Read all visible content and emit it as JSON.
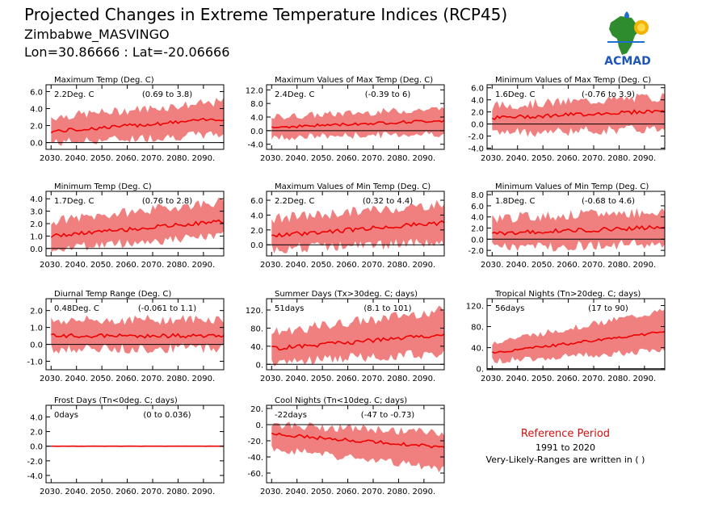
{
  "header": {
    "title": "Projected Changes in Extreme Temperature Indices (RCP45)",
    "location": "Zimbabwe_MASVINGO",
    "coords": "Lon=30.86666 : Lat=-20.06666"
  },
  "logo": {
    "text": "ACMAD",
    "icon": "africa-map-logo-icon"
  },
  "reference": {
    "label": "Reference Period",
    "period": "1991 to 2020",
    "note": "Very-Likely-Ranges are written in ( )"
  },
  "colors": {
    "band": "#f08080",
    "line": "#ee0000",
    "text": "#000000"
  },
  "chart_data": [
    {
      "type": "area",
      "title": "Maximum Temp (Deg. C)",
      "value": "2.2Deg. C",
      "range": "(0.69 to 3.8)",
      "start": 1.3,
      "end": 2.8,
      "lower_start": 0.0,
      "lower_end": 1.0,
      "upper_start": 3.0,
      "upper_end": 4.8,
      "ylim": [
        -0.8,
        6.8
      ],
      "yticks": [
        0,
        2,
        4,
        6
      ],
      "ytick_labels": [
        "0.0",
        "2.0",
        "4.0",
        "6.0"
      ],
      "xlim": [
        2028,
        2098
      ],
      "xticks": [
        2030,
        2040,
        2050,
        2060,
        2070,
        2080,
        2090
      ]
    },
    {
      "type": "area",
      "title": "Maximum Values of Max Temp (Deg. C)",
      "value": "2.4Deg. C",
      "range": "(-0.39 to 6)",
      "start": 1.0,
      "end": 3.0,
      "lower_start": -2.0,
      "lower_end": -0.8,
      "upper_start": 4.0,
      "upper_end": 6.5,
      "ylim": [
        -5.5,
        13.5
      ],
      "yticks": [
        -4,
        0,
        4,
        8,
        12
      ],
      "ytick_labels": [
        "-4.0",
        "0.0",
        "4.0",
        "8.0",
        "12.0"
      ],
      "xlim": [
        2028,
        2098
      ],
      "xticks": [
        2030,
        2040,
        2050,
        2060,
        2070,
        2080,
        2090
      ]
    },
    {
      "type": "area",
      "title": "Minimum Values of Max Temp (Deg. C)",
      "value": "1.6Deg. C",
      "range": "(-0.76 to 3.9)",
      "start": 1.0,
      "end": 2.2,
      "lower_start": -1.5,
      "lower_end": -0.8,
      "upper_start": 3.0,
      "upper_end": 4.5,
      "ylim": [
        -4.2,
        6.5
      ],
      "yticks": [
        -4,
        -2,
        0,
        2,
        4,
        6
      ],
      "ytick_labels": [
        "-4.0",
        "-2.0",
        "0.0",
        "2.0",
        "4.0",
        "6.0"
      ],
      "xlim": [
        2028,
        2098
      ],
      "xticks": [
        2030,
        2040,
        2050,
        2060,
        2070,
        2080,
        2090
      ]
    },
    {
      "type": "area",
      "title": "Minimum Temp (Deg. C)",
      "value": "1.7Deg. C",
      "range": "(0.76 to 2.8)",
      "start": 1.0,
      "end": 2.2,
      "lower_start": 0.0,
      "lower_end": 1.0,
      "upper_start": 2.2,
      "upper_end": 3.8,
      "ylim": [
        -0.6,
        4.6
      ],
      "yticks": [
        0,
        1,
        2,
        3,
        4
      ],
      "ytick_labels": [
        "0.0",
        "1.0",
        "2.0",
        "3.0",
        "4.0"
      ],
      "xlim": [
        2028,
        2098
      ],
      "xticks": [
        2030,
        2040,
        2050,
        2060,
        2070,
        2080,
        2090
      ]
    },
    {
      "type": "area",
      "title": "Maximum Values of Min Temp (Deg. C)",
      "value": "2.2Deg. C",
      "range": "(0.32 to 4.4)",
      "start": 1.2,
      "end": 3.0,
      "lower_start": -0.5,
      "lower_end": 0.3,
      "upper_start": 3.5,
      "upper_end": 5.5,
      "ylim": [
        -1.5,
        7.2
      ],
      "yticks": [
        0,
        2,
        4,
        6
      ],
      "ytick_labels": [
        "0.0",
        "2.0",
        "4.0",
        "6.0"
      ],
      "xlim": [
        2028,
        2098
      ],
      "xticks": [
        2030,
        2040,
        2050,
        2060,
        2070,
        2080,
        2090
      ]
    },
    {
      "type": "area",
      "title": "Minimum Values of Min Temp (Deg. C)",
      "value": "1.8Deg. C",
      "range": "(-0.68 to 4.6)",
      "start": 1.0,
      "end": 2.2,
      "lower_start": -1.5,
      "lower_end": -0.8,
      "upper_start": 3.8,
      "upper_end": 5.0,
      "ylim": [
        -3.0,
        8.6
      ],
      "yticks": [
        -2,
        0,
        2,
        4,
        6,
        8
      ],
      "ytick_labels": [
        "-2.0",
        "0.0",
        "2.0",
        "4.0",
        "6.0",
        "8.0"
      ],
      "xlim": [
        2028,
        2098
      ],
      "xticks": [
        2030,
        2040,
        2050,
        2060,
        2070,
        2080,
        2090
      ]
    },
    {
      "type": "area",
      "title": "Diurnal Temp Range (Deg. C)",
      "value": "0.48Deg. C",
      "range": "(-0.061 to 1.1)",
      "start": 0.5,
      "end": 0.5,
      "lower_start": -0.3,
      "lower_end": -0.2,
      "upper_start": 1.4,
      "upper_end": 1.5,
      "ylim": [
        -1.5,
        2.7
      ],
      "yticks": [
        -1,
        0,
        1,
        2
      ],
      "ytick_labels": [
        "-1.0",
        "0.0",
        "1.0",
        "2.0"
      ],
      "xlim": [
        2028,
        2098
      ],
      "xticks": [
        2030,
        2040,
        2050,
        2060,
        2070,
        2080,
        2090
      ]
    },
    {
      "type": "area",
      "title": "Summer Days (Tx>30deg. C; days)",
      "value": "51days",
      "range": "(8.1 to 101)",
      "start": 35,
      "end": 65,
      "lower_start": 5,
      "lower_end": 25,
      "upper_start": 70,
      "upper_end": 120,
      "ylim": [
        -12,
        145
      ],
      "yticks": [
        0,
        40,
        80,
        120
      ],
      "ytick_labels": [
        "0.",
        "40.",
        "80.",
        "120."
      ],
      "xlim": [
        2028,
        2098
      ],
      "xticks": [
        2030,
        2040,
        2050,
        2060,
        2070,
        2080,
        2090
      ]
    },
    {
      "type": "area",
      "title": "Tropical Nights (Tn>20deg. C; days)",
      "value": "56days",
      "range": "(17 to 90)",
      "start": 30,
      "end": 70,
      "lower_start": 15,
      "lower_end": 35,
      "upper_start": 50,
      "upper_end": 110,
      "ylim": [
        -2,
        133
      ],
      "yticks": [
        0,
        40,
        80,
        120
      ],
      "ytick_labels": [
        "0.",
        "40.",
        "80.",
        "120."
      ],
      "xlim": [
        2028,
        2098
      ],
      "xticks": [
        2030,
        2040,
        2050,
        2060,
        2070,
        2080,
        2090
      ]
    },
    {
      "type": "area",
      "title": "Frost Days (Tn<0deg. C; days)",
      "value": "0days",
      "range": "(0 to 0.036)",
      "start": 0.0,
      "end": 0.0,
      "lower_start": 0.0,
      "lower_end": 0.0,
      "upper_start": 0.08,
      "upper_end": 0.08,
      "ylim": [
        -5.0,
        5.6
      ],
      "yticks": [
        -4,
        -2,
        0,
        2,
        4
      ],
      "ytick_labels": [
        "-4.0",
        "-2.0",
        "0.0",
        "2.0",
        "4.0"
      ],
      "xlim": [
        2028,
        2098
      ],
      "xticks": [
        2030,
        2040,
        2050,
        2060,
        2070,
        2080,
        2090
      ]
    },
    {
      "type": "area",
      "title": "Cool Nights (Tn<10deg. C; days)",
      "value": "-22days",
      "range": "(-47 to -0.73)",
      "start": -12,
      "end": -28,
      "lower_start": -30,
      "lower_end": -55,
      "upper_start": 0,
      "upper_end": -10,
      "ylim": [
        -72,
        24
      ],
      "yticks": [
        -60,
        -40,
        -20,
        0,
        20
      ],
      "ytick_labels": [
        "-60.",
        "-40.",
        "-20.",
        "0.",
        "20."
      ],
      "xlim": [
        2028,
        2098
      ],
      "xticks": [
        2030,
        2040,
        2050,
        2060,
        2070,
        2080,
        2090
      ]
    }
  ]
}
